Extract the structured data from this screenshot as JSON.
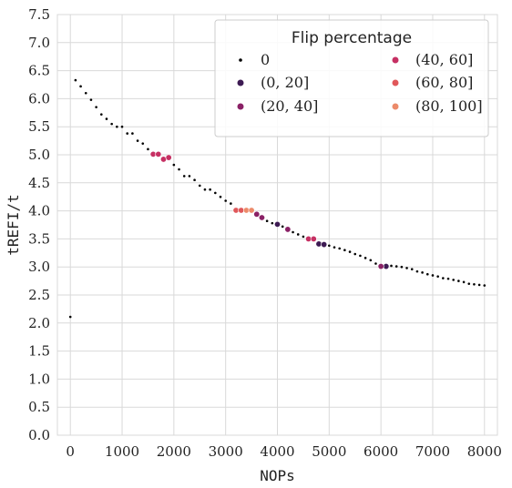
{
  "chart_data": {
    "type": "scatter",
    "title": "",
    "xlabel": "NOPs",
    "ylabel": "tREFI/t",
    "xlim": [
      -250,
      8250
    ],
    "ylim": [
      0.0,
      7.5
    ],
    "x_ticks": [
      0,
      1000,
      2000,
      3000,
      4000,
      5000,
      6000,
      7000,
      8000
    ],
    "y_ticks": [
      "0.0",
      "0.5",
      "1.0",
      "1.5",
      "2.0",
      "2.5",
      "3.0",
      "3.5",
      "4.0",
      "4.5",
      "5.0",
      "5.5",
      "6.0",
      "6.5",
      "7.0",
      "7.5"
    ],
    "grid": true,
    "legend": {
      "title": "Flip percentage",
      "placement": "top-right",
      "entries": [
        {
          "label": "0",
          "color": "#000000"
        },
        {
          "label": "(0, 20]",
          "color": "#3d1a53"
        },
        {
          "label": "(20, 40]",
          "color": "#8a2166"
        },
        {
          "label": "(40, 60]",
          "color": "#c63063"
        },
        {
          "label": "(60, 80]",
          "color": "#e0575a"
        },
        {
          "label": "(80, 100]",
          "color": "#ec8a6a"
        }
      ]
    },
    "series": [
      {
        "name": "0",
        "color": "#000000",
        "points": [
          [
            0,
            2.11
          ],
          [
            100,
            6.33
          ],
          [
            200,
            6.22
          ],
          [
            300,
            6.1
          ],
          [
            400,
            5.98
          ],
          [
            500,
            5.85
          ],
          [
            600,
            5.72
          ],
          [
            700,
            5.64
          ],
          [
            800,
            5.55
          ],
          [
            900,
            5.5
          ],
          [
            1000,
            5.5
          ],
          [
            1100,
            5.38
          ],
          [
            1200,
            5.38
          ],
          [
            1300,
            5.25
          ],
          [
            1400,
            5.2
          ],
          [
            1500,
            5.1
          ],
          [
            2000,
            4.82
          ],
          [
            2100,
            4.74
          ],
          [
            2200,
            4.62
          ],
          [
            2300,
            4.62
          ],
          [
            2400,
            4.55
          ],
          [
            2500,
            4.45
          ],
          [
            2600,
            4.38
          ],
          [
            2700,
            4.38
          ],
          [
            2800,
            4.32
          ],
          [
            2900,
            4.25
          ],
          [
            3000,
            4.18
          ],
          [
            3100,
            4.13
          ],
          [
            3800,
            3.82
          ],
          [
            3900,
            3.78
          ],
          [
            4100,
            3.72
          ],
          [
            4300,
            3.62
          ],
          [
            4400,
            3.58
          ],
          [
            4500,
            3.54
          ],
          [
            5000,
            3.38
          ],
          [
            5100,
            3.35
          ],
          [
            5200,
            3.33
          ],
          [
            5300,
            3.3
          ],
          [
            5400,
            3.27
          ],
          [
            5500,
            3.23
          ],
          [
            5600,
            3.2
          ],
          [
            5700,
            3.16
          ],
          [
            5800,
            3.12
          ],
          [
            5900,
            3.06
          ],
          [
            6200,
            3.02
          ],
          [
            6300,
            3.01
          ],
          [
            6400,
            3.0
          ],
          [
            6500,
            2.98
          ],
          [
            6600,
            2.96
          ],
          [
            6700,
            2.92
          ],
          [
            6800,
            2.9
          ],
          [
            6900,
            2.87
          ],
          [
            7000,
            2.85
          ],
          [
            7100,
            2.83
          ],
          [
            7200,
            2.8
          ],
          [
            7300,
            2.79
          ],
          [
            7400,
            2.77
          ],
          [
            7500,
            2.75
          ],
          [
            7600,
            2.73
          ],
          [
            7700,
            2.7
          ],
          [
            7800,
            2.69
          ],
          [
            7900,
            2.68
          ],
          [
            8000,
            2.67
          ]
        ]
      },
      {
        "name": "(0, 20]",
        "color": "#3d1a53",
        "points": [
          [
            4000,
            3.76
          ],
          [
            4800,
            3.41
          ],
          [
            4900,
            3.4
          ],
          [
            6100,
            3.01
          ]
        ]
      },
      {
        "name": "(20, 40]",
        "color": "#8a2166",
        "points": [
          [
            3600,
            3.94
          ],
          [
            3700,
            3.88
          ],
          [
            4200,
            3.67
          ],
          [
            6000,
            3.01
          ]
        ]
      },
      {
        "name": "(40, 60]",
        "color": "#c63063",
        "points": [
          [
            1600,
            5.01
          ],
          [
            1700,
            5.01
          ],
          [
            1800,
            4.92
          ],
          [
            1900,
            4.95
          ],
          [
            4600,
            3.5
          ],
          [
            4700,
            3.5
          ]
        ]
      },
      {
        "name": "(60, 80]",
        "color": "#e0575a",
        "points": [
          [
            3200,
            4.01
          ],
          [
            3300,
            4.01
          ]
        ]
      },
      {
        "name": "(80, 100]",
        "color": "#ec8a6a",
        "points": [
          [
            3400,
            4.01
          ],
          [
            3500,
            4.01
          ]
        ]
      }
    ]
  }
}
